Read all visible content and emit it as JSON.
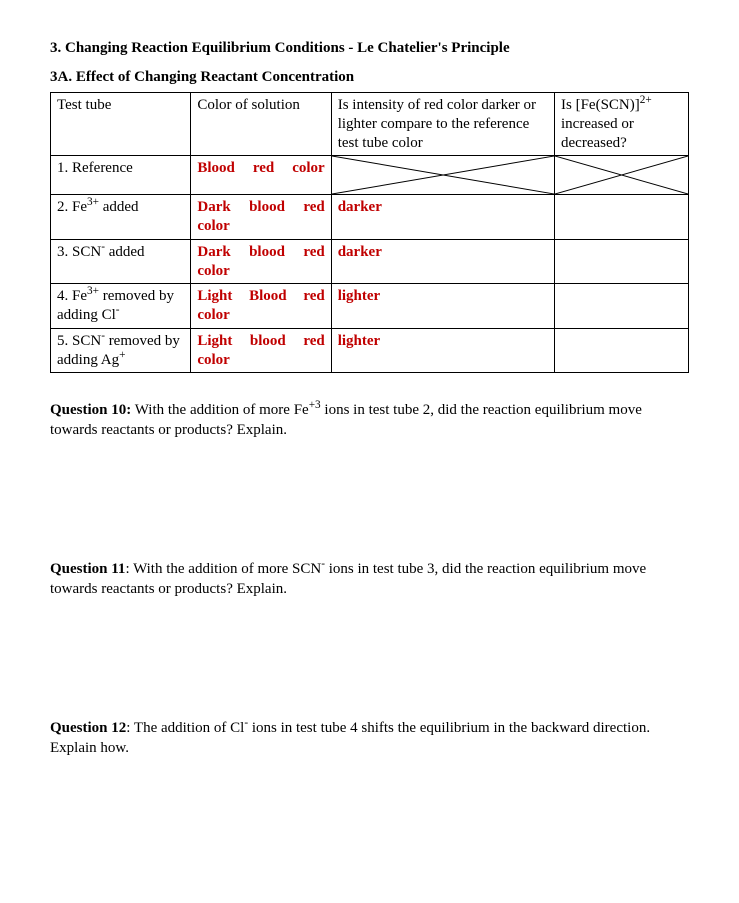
{
  "heading": "3. Changing Reaction Equilibrium Conditions - Le Chatelier's Principle",
  "subheading": "3A. Effect of Changing Reactant Concentration",
  "colors": {
    "text": "#000000",
    "accent_red": "#c00000",
    "border": "#000000",
    "background": "#ffffff"
  },
  "fonts": {
    "family": "Times New Roman",
    "body_size_pt": 11.5,
    "bold_weight": 700
  },
  "table": {
    "header": {
      "c1": "Test tube",
      "c2": "Color of solution",
      "c3": "Is intensity of red color darker or lighter compare to the reference test tube color",
      "c4_html": "Is [Fe(SCN)]<sup>2+</sup> increased or decreased?"
    },
    "column_widths_pct": [
      22,
      22,
      35,
      21
    ],
    "rows": [
      {
        "c1_html": "1. Reference",
        "c2": "Blood red color",
        "c2_class": "redbold",
        "c3": "",
        "c3_cross": true,
        "c4": "",
        "c4_cross": true
      },
      {
        "c1_html": "2. Fe<sup>3+</sup> added",
        "c2": "Dark blood red color",
        "c2_class": "redbold",
        "c3": "darker",
        "c3_class": "redbold",
        "c4": ""
      },
      {
        "c1_html": "3. SCN<sup>-</sup> added",
        "c2": "Dark blood red color",
        "c2_class": "redbold",
        "c3": "darker",
        "c3_class": "redbold",
        "c4": ""
      },
      {
        "c1_html": "4. Fe<sup>3+</sup> removed by adding Cl<sup>-</sup>",
        "c2": "Light Blood red color",
        "c2_class": "redbold",
        "c3": "lighter",
        "c3_class": "redbold",
        "c4": ""
      },
      {
        "c1_html": "5. SCN<sup>-</sup> removed by adding Ag<sup>+</sup>",
        "c2": "Light blood red color",
        "c2_class": "redbold",
        "c3": "lighter",
        "c3_class": "redbold",
        "c4": ""
      }
    ]
  },
  "questions": [
    {
      "label": "Question 10:",
      "body_html": " With the addition of more Fe<sup>+3</sup> ions in test tube 2, did the reaction equilibrium move towards reactants or products? Explain."
    },
    {
      "label": "Question 11",
      "body_html": ": With the addition of more SCN<sup>-</sup> ions in test tube 3, did the reaction equilibrium move towards reactants or products? Explain."
    },
    {
      "label": "Question 12",
      "body_html": ": The addition of Cl<sup>-</sup> ions in test tube 4 shifts the equilibrium in the backward direction. Explain how."
    }
  ]
}
